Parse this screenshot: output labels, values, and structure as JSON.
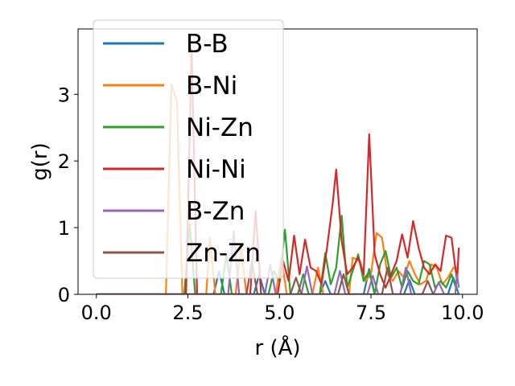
{
  "chart_data": {
    "type": "line",
    "title": "",
    "xlabel": "r (Å)",
    "ylabel": "g(r)",
    "xlim": [
      -0.5,
      10.4
    ],
    "ylim": [
      0,
      3.98
    ],
    "x_ticks": [
      0.0,
      2.5,
      5.0,
      7.5,
      10.0
    ],
    "x_tick_labels": [
      "0.0",
      "2.5",
      "5.0",
      "7.5",
      "10.0"
    ],
    "y_ticks": [
      0,
      1,
      2,
      3
    ],
    "y_tick_labels": [
      "0",
      "1",
      "2",
      "3"
    ],
    "grid": false,
    "legend_position": "upper-left",
    "series": [
      {
        "name": "B-B",
        "color": "#1f77b4",
        "points": [
          [
            0,
            0
          ],
          [
            3.2,
            0
          ],
          [
            3.35,
            0.35
          ],
          [
            3.5,
            0
          ],
          [
            4.3,
            0
          ],
          [
            4.45,
            0.3
          ],
          [
            4.6,
            0
          ],
          [
            6.1,
            0
          ],
          [
            6.25,
            0.2
          ],
          [
            6.4,
            0
          ],
          [
            7.3,
            0
          ],
          [
            7.45,
            0.38
          ],
          [
            7.6,
            0
          ],
          [
            8.4,
            0
          ],
          [
            8.55,
            0.22
          ],
          [
            8.7,
            0
          ],
          [
            9.6,
            0
          ],
          [
            9.75,
            0.25
          ],
          [
            9.9,
            0
          ]
        ]
      },
      {
        "name": "B-Ni",
        "color": "#ff7f0e",
        "points": [
          [
            0,
            0
          ],
          [
            1.9,
            0
          ],
          [
            2.05,
            3.15
          ],
          [
            2.2,
            2.9
          ],
          [
            2.35,
            0
          ],
          [
            3.0,
            0
          ],
          [
            3.1,
            0.85
          ],
          [
            3.25,
            0
          ],
          [
            3.8,
            0
          ],
          [
            3.95,
            0.7
          ],
          [
            4.1,
            0
          ],
          [
            4.9,
            0
          ],
          [
            5.05,
            0.55
          ],
          [
            5.2,
            0
          ],
          [
            5.9,
            0
          ],
          [
            6.05,
            0.4
          ],
          [
            6.2,
            0
          ],
          [
            6.9,
            0
          ],
          [
            7.0,
            0.55
          ],
          [
            7.2,
            0.5
          ],
          [
            7.35,
            0.2
          ],
          [
            7.5,
            0.3
          ],
          [
            7.65,
            0.92
          ],
          [
            7.8,
            0.85
          ],
          [
            7.95,
            0.3
          ],
          [
            8.1,
            0.2
          ],
          [
            8.25,
            0.35
          ],
          [
            8.4,
            0.25
          ],
          [
            8.55,
            0.5
          ],
          [
            8.7,
            0.3
          ],
          [
            8.85,
            0.15
          ],
          [
            9.0,
            0.2
          ],
          [
            9.15,
            0.45
          ],
          [
            9.3,
            0.4
          ],
          [
            9.45,
            0.15
          ],
          [
            9.6,
            0.25
          ],
          [
            9.75,
            0.4
          ],
          [
            9.9,
            0.38
          ]
        ]
      },
      {
        "name": "Ni-Zn",
        "color": "#2ca02c",
        "points": [
          [
            0,
            0
          ],
          [
            2.4,
            0
          ],
          [
            2.55,
            1.05
          ],
          [
            2.7,
            0
          ],
          [
            3.4,
            0
          ],
          [
            3.55,
            0.6
          ],
          [
            3.7,
            0
          ],
          [
            4.7,
            0
          ],
          [
            4.85,
            0.35
          ],
          [
            5.0,
            0.2
          ],
          [
            5.15,
            0.97
          ],
          [
            5.3,
            0
          ],
          [
            5.5,
            0
          ],
          [
            5.65,
            0.3
          ],
          [
            5.8,
            0
          ],
          [
            6.1,
            0
          ],
          [
            6.25,
            0.62
          ],
          [
            6.4,
            0.15
          ],
          [
            6.55,
            0.4
          ],
          [
            6.7,
            1.18
          ],
          [
            6.85,
            0.1
          ],
          [
            7.0,
            0.35
          ],
          [
            7.15,
            0.6
          ],
          [
            7.3,
            0.2
          ],
          [
            7.45,
            0.35
          ],
          [
            7.6,
            0
          ],
          [
            7.75,
            0.45
          ],
          [
            7.9,
            0.65
          ],
          [
            8.05,
            0.25
          ],
          [
            8.2,
            0.4
          ],
          [
            8.35,
            0.1
          ],
          [
            8.5,
            0.35
          ],
          [
            8.65,
            0.2
          ],
          [
            8.8,
            0.15
          ],
          [
            8.95,
            0.5
          ],
          [
            9.1,
            0.45
          ],
          [
            9.25,
            0.1
          ],
          [
            9.4,
            0.2
          ],
          [
            9.55,
            0.1
          ],
          [
            9.7,
            0.3
          ],
          [
            9.85,
            0.05
          ]
        ]
      },
      {
        "name": "Ni-Ni",
        "color": "#d62728",
        "points": [
          [
            0,
            0
          ],
          [
            2.45,
            0
          ],
          [
            2.6,
            3.68
          ],
          [
            2.75,
            0
          ],
          [
            4.2,
            0
          ],
          [
            4.35,
            1.25
          ],
          [
            4.5,
            0
          ],
          [
            4.95,
            0
          ],
          [
            5.1,
            0.5
          ],
          [
            5.25,
            0.2
          ],
          [
            5.4,
            0.88
          ],
          [
            5.55,
            0.3
          ],
          [
            5.7,
            0.82
          ],
          [
            5.85,
            0.4
          ],
          [
            6.0,
            0.35
          ],
          [
            6.15,
            0.15
          ],
          [
            6.3,
            0.7
          ],
          [
            6.45,
            1.35
          ],
          [
            6.55,
            1.87
          ],
          [
            6.7,
            0.8
          ],
          [
            6.85,
            0.3
          ],
          [
            7.0,
            0.4
          ],
          [
            7.15,
            0.55
          ],
          [
            7.3,
            0.3
          ],
          [
            7.45,
            2.4
          ],
          [
            7.6,
            0.6
          ],
          [
            7.75,
            0.3
          ],
          [
            7.9,
            0.1
          ],
          [
            8.05,
            0.3
          ],
          [
            8.2,
            0.5
          ],
          [
            8.35,
            0.9
          ],
          [
            8.5,
            0.55
          ],
          [
            8.65,
            1.1
          ],
          [
            8.8,
            0.7
          ],
          [
            8.95,
            0.4
          ],
          [
            9.1,
            0.3
          ],
          [
            9.25,
            0.45
          ],
          [
            9.4,
            0.35
          ],
          [
            9.55,
            0.88
          ],
          [
            9.7,
            0.85
          ],
          [
            9.85,
            0.2
          ],
          [
            9.9,
            0.7
          ]
        ]
      },
      {
        "name": "B-Zn",
        "color": "#9467bd",
        "points": [
          [
            0,
            0
          ],
          [
            3.6,
            0
          ],
          [
            3.75,
            0.95
          ],
          [
            3.9,
            0
          ],
          [
            4.6,
            0
          ],
          [
            4.75,
            0.45
          ],
          [
            4.9,
            0
          ],
          [
            5.6,
            0
          ],
          [
            5.75,
            0.42
          ],
          [
            5.9,
            0
          ],
          [
            6.5,
            0
          ],
          [
            6.65,
            0.35
          ],
          [
            6.8,
            0
          ],
          [
            7.4,
            0
          ],
          [
            7.55,
            0.28
          ],
          [
            7.7,
            0
          ],
          [
            8.3,
            0
          ],
          [
            8.45,
            0.4
          ],
          [
            8.6,
            0
          ],
          [
            9.2,
            0
          ],
          [
            9.35,
            0.18
          ],
          [
            9.5,
            0
          ],
          [
            9.8,
            0
          ],
          [
            9.85,
            0.3
          ],
          [
            9.9,
            0.1
          ]
        ]
      },
      {
        "name": "Zn-Zn",
        "color": "#8c564b",
        "points": [
          [
            0,
            0
          ],
          [
            4.1,
            0
          ],
          [
            4.25,
            0.5
          ],
          [
            4.4,
            0
          ],
          [
            5.3,
            0
          ],
          [
            5.45,
            0.25
          ],
          [
            5.6,
            0
          ],
          [
            6.6,
            0
          ],
          [
            6.75,
            0.3
          ],
          [
            6.9,
            0
          ],
          [
            7.8,
            0
          ],
          [
            7.95,
            0.4
          ],
          [
            8.1,
            0
          ],
          [
            8.9,
            0
          ],
          [
            9.05,
            0.2
          ],
          [
            9.2,
            0
          ],
          [
            9.9,
            0
          ]
        ]
      }
    ]
  }
}
